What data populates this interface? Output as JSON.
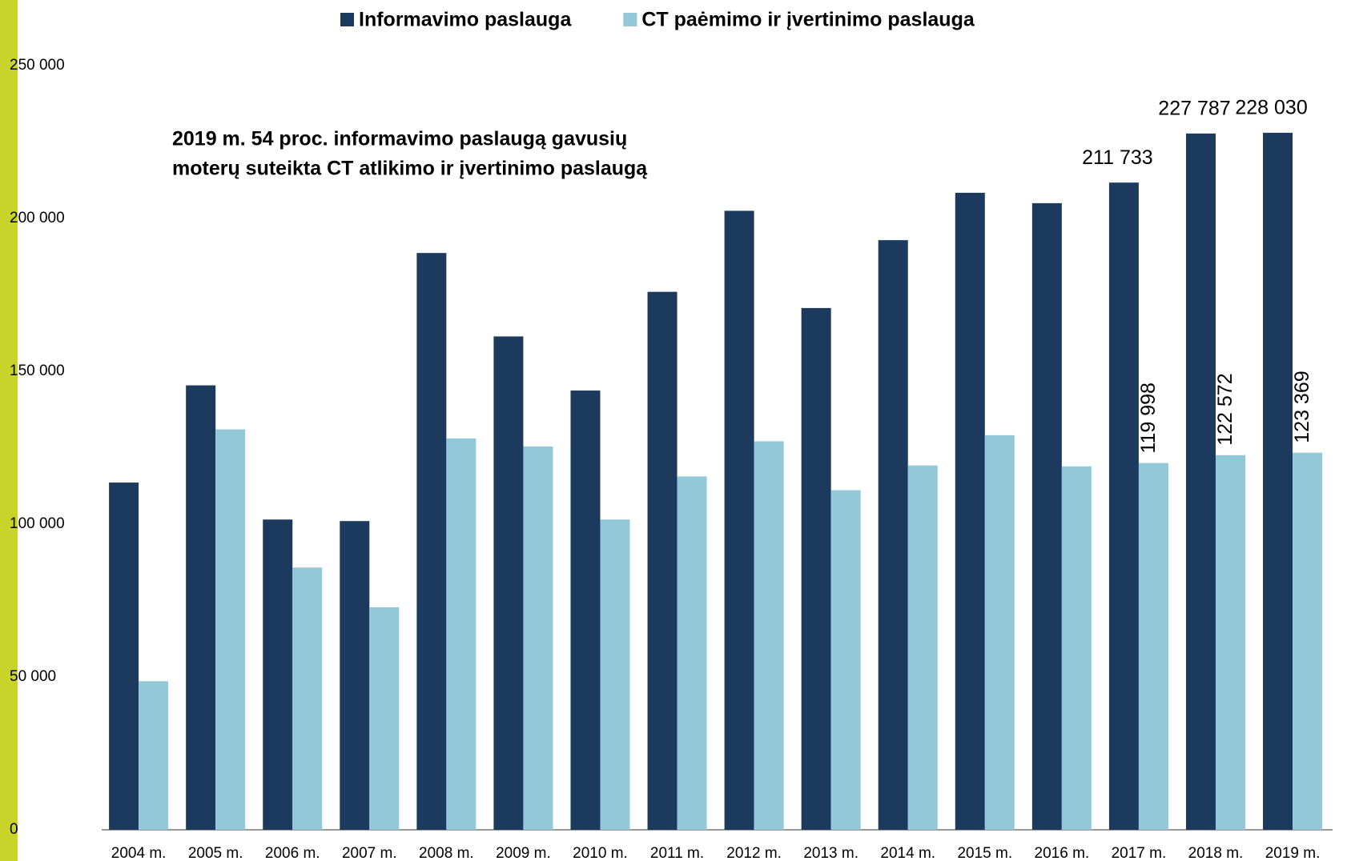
{
  "chart_data": {
    "type": "bar",
    "annotation": [
      "2019 m. 54 proc. informavimo paslaugą gavusių",
      "moterų suteikta CT atlikimo ir įvertinimo paslaugą"
    ],
    "categories": [
      "2004 m.",
      "2005 m.",
      "2006 m.",
      "2007 m.",
      "2008 m.",
      "2009 m.",
      "2010 m.",
      "2011 m.",
      "2012 m.",
      "2013 m.",
      "2014 m.",
      "2015 m.",
      "2016 m.",
      "2017 m.",
      "2018 m.",
      "2019 m."
    ],
    "series": [
      {
        "name": "Informavimo paslauga",
        "color": "#1b3a5e",
        "values": [
          113600,
          145400,
          101500,
          101000,
          188700,
          161400,
          143700,
          176000,
          202500,
          170700,
          192900,
          208400,
          205000,
          211733,
          227787,
          228030
        ],
        "value_labels": [
          null,
          null,
          null,
          null,
          null,
          null,
          null,
          null,
          null,
          null,
          null,
          null,
          null,
          "211 733",
          "227 787",
          "228 030"
        ]
      },
      {
        "name": "CT paėmimo ir įvertinimo paslauga",
        "color": "#92c8d8",
        "values": [
          48600,
          131000,
          85800,
          72800,
          128000,
          125400,
          101500,
          115600,
          127100,
          111100,
          119200,
          129100,
          118900,
          119998,
          122572,
          123369
        ],
        "value_labels": [
          null,
          null,
          null,
          null,
          null,
          null,
          null,
          null,
          null,
          null,
          null,
          null,
          null,
          "119 998",
          "122 572",
          "123 369"
        ]
      }
    ],
    "ylim": [
      0,
      250000
    ],
    "yticks": [
      0,
      {
        "value": 50000,
        "label": "50 000"
      },
      {
        "value": 100000,
        "label": "100 000"
      },
      {
        "value": 150000,
        "label": "150 000"
      },
      {
        "value": 200000,
        "label": "200 000"
      },
      {
        "value": 250000,
        "label": "250 000"
      }
    ],
    "grid": false
  }
}
